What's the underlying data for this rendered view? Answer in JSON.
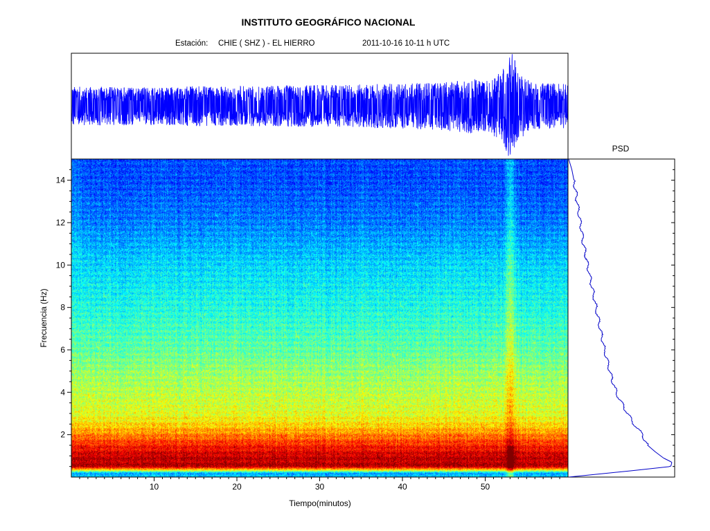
{
  "header": {
    "title": "INSTITUTO GEOGRÁFICO NACIONAL",
    "station_label": "Estación:",
    "station": "CHIE ( SHZ ) - EL HIERRO",
    "datetime": "2011-10-16  10-11 h UTC"
  },
  "psd_label": "PSD",
  "colors": {
    "waveform": "#0000ff",
    "psd_line": "#0000c8",
    "colormap": [
      "#00008f",
      "#0000ff",
      "#00ffff",
      "#ffff00",
      "#ff0000",
      "#800000"
    ]
  },
  "chart_data": [
    {
      "type": "line",
      "panel": "seismogram",
      "x_unit": "minutes",
      "xlim": [
        0,
        60
      ],
      "envelope": {
        "x": [
          0,
          5,
          10,
          15,
          20,
          25,
          30,
          35,
          40,
          45,
          48,
          50,
          52,
          53,
          53.5,
          54,
          56,
          60
        ],
        "amplitude": [
          0.35,
          0.35,
          0.34,
          0.36,
          0.36,
          0.37,
          0.38,
          0.39,
          0.41,
          0.43,
          0.5,
          0.46,
          0.62,
          1.0,
          0.9,
          0.6,
          0.42,
          0.4
        ]
      }
    },
    {
      "type": "heatmap",
      "panel": "spectrogram",
      "xlabel": "Tiempo(minutos)",
      "ylabel": "Frecuencia  (Hz)",
      "xlim": [
        0,
        60
      ],
      "ylim": [
        0,
        15
      ],
      "xticks": [
        10,
        20,
        30,
        40,
        50
      ],
      "yticks": [
        2,
        4,
        6,
        8,
        10,
        12,
        14
      ],
      "colorbar": "jet",
      "relative_energy_by_frequency": {
        "freq_hz": [
          0.2,
          0.5,
          1,
          1.5,
          2,
          2.5,
          3,
          4,
          5,
          6,
          8,
          10,
          12,
          14,
          15
        ],
        "level": [
          0.3,
          0.95,
          0.93,
          0.85,
          0.75,
          0.66,
          0.6,
          0.56,
          0.52,
          0.47,
          0.4,
          0.34,
          0.25,
          0.2,
          0.2
        ]
      },
      "event_minute": 53
    },
    {
      "type": "line",
      "panel": "psd",
      "title": "PSD",
      "y_unit": "Hz",
      "ylim": [
        0,
        15
      ],
      "series": [
        {
          "freq_hz": [
            0,
            0.3,
            0.5,
            0.7,
            0.9,
            1.2,
            1.5,
            2,
            2.5,
            3,
            3.5,
            4,
            5,
            6,
            7,
            8,
            9,
            10,
            11,
            12,
            13,
            14,
            14.5,
            15
          ],
          "power": [
            0.0,
            0.6,
            0.97,
            0.98,
            0.9,
            0.82,
            0.75,
            0.7,
            0.62,
            0.56,
            0.5,
            0.45,
            0.39,
            0.34,
            0.3,
            0.26,
            0.22,
            0.18,
            0.14,
            0.11,
            0.08,
            0.05,
            0.03,
            0.0
          ]
        }
      ]
    }
  ]
}
